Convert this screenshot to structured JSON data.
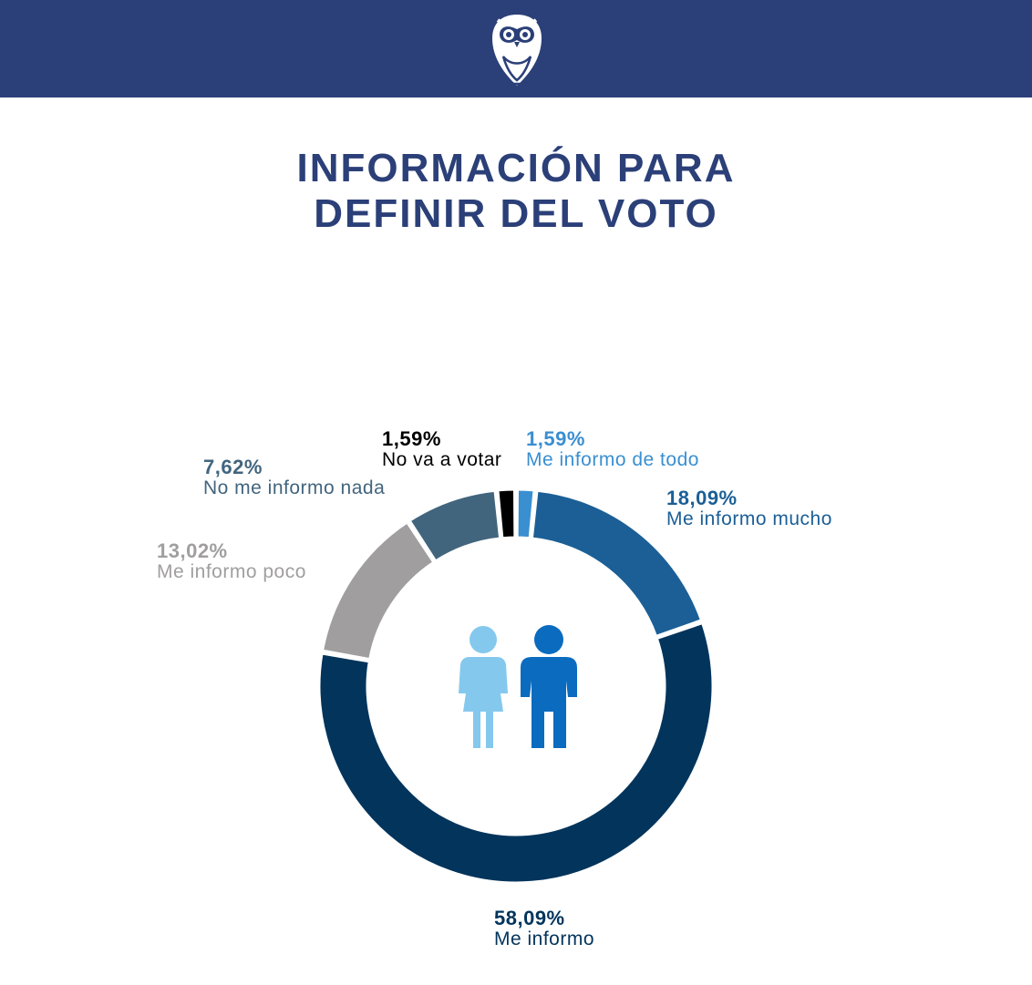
{
  "header": {
    "logo_icon": "owl-icon",
    "background_color": "#2b3f78"
  },
  "title_lines": [
    "INFORMACIÓN PARA",
    "DEFINIR DEL VOTO"
  ],
  "center_icon": "people-icon",
  "chart_data": {
    "type": "pie",
    "variant": "donut",
    "categories": [
      "Me informo de todo",
      "Me informo mucho",
      "Me informo",
      "Me informo poco",
      "No me informo nada",
      "No va a votar"
    ],
    "values": [
      1.59,
      18.09,
      58.09,
      13.02,
      7.62,
      1.59
    ],
    "value_labels": [
      "1,59%",
      "18,09%",
      "58,09%",
      "13,02%",
      "7,62%",
      "1,59%"
    ],
    "colors": [
      "#3a8fd1",
      "#1b5f96",
      "#02345c",
      "#a09e9e",
      "#42657e",
      "#000000"
    ],
    "label_colors": [
      "#3a8fd1",
      "#1b5f96",
      "#02345c",
      "#a09e9e",
      "#42657e",
      "#000000"
    ],
    "start_angle_deg": 0,
    "direction": "clockwise"
  }
}
